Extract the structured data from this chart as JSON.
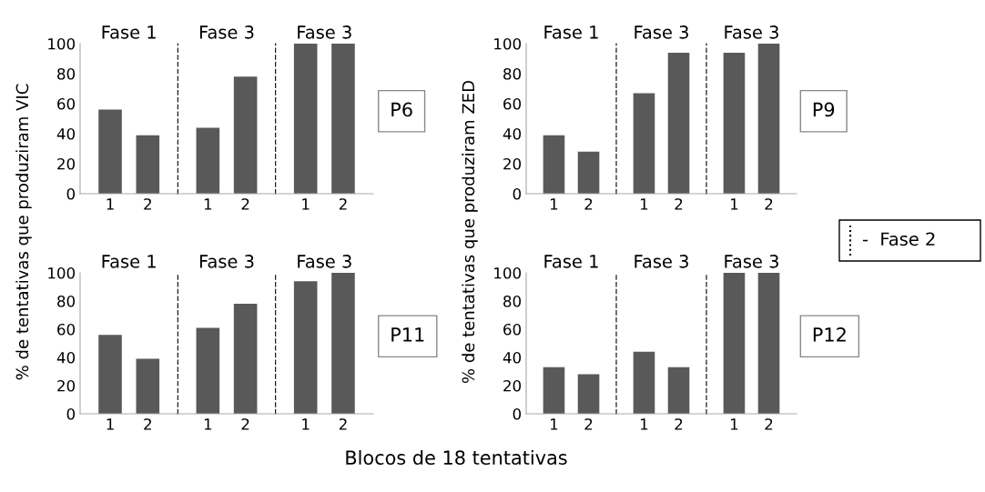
{
  "chart_data": [
    {
      "type": "bar",
      "title": "Fase 1",
      "categories": [
        "1",
        "2"
      ],
      "values": [
        56,
        39
      ],
      "color": "#595959",
      "ylim": [
        0,
        100
      ],
      "yticks": [
        0,
        20,
        40,
        60,
        80,
        100
      ],
      "ylabel": "% de tentativas que produziram VIC"
    },
    {
      "type": "bar",
      "title": "Fase 3",
      "categories": [
        "1",
        "2"
      ],
      "values": [
        44,
        78
      ],
      "color": "#595959",
      "ylim": [
        0,
        100
      ],
      "tick_labels": "x"
    },
    {
      "type": "bar",
      "title": "Fase 3",
      "categories": [
        "1",
        "2"
      ],
      "values": [
        100,
        100
      ],
      "color": "#595959",
      "ylim": [
        0,
        100
      ],
      "tick_labels": "x",
      "annotations": [
        "P6"
      ]
    },
    {
      "type": "bar",
      "title": "Fase 1",
      "categories": [
        "1",
        "2"
      ],
      "values": [
        39,
        28
      ],
      "color": "#595959",
      "ylim": [
        0,
        100
      ],
      "yticks": [
        0,
        20,
        40,
        60,
        80,
        100
      ],
      "ylabel": "% de tentativas que produziram ZED"
    },
    {
      "type": "bar",
      "title": "Fase 3",
      "categories": [
        "1",
        "2"
      ],
      "values": [
        67,
        94
      ],
      "color": "#595959",
      "ylim": [
        0,
        100
      ],
      "tick_labels": "x"
    },
    {
      "type": "bar",
      "title": "Fase 3",
      "categories": [
        "1",
        "2"
      ],
      "values": [
        94,
        100
      ],
      "color": "#595959",
      "ylim": [
        0,
        100
      ],
      "tick_labels": "x",
      "annotations": [
        "P9"
      ]
    },
    {
      "type": "bar",
      "title": "Fase 1",
      "categories": [
        "1",
        "2"
      ],
      "values": [
        56,
        39
      ],
      "color": "#595959",
      "ylim": [
        0,
        100
      ],
      "yticks": [
        0,
        20,
        40,
        60,
        80,
        100
      ]
    },
    {
      "type": "bar",
      "title": "Fase 3",
      "categories": [
        "1",
        "2"
      ],
      "values": [
        61,
        78
      ],
      "color": "#595959",
      "ylim": [
        0,
        100
      ],
      "tick_labels": "x"
    },
    {
      "type": "bar",
      "title": "Fase 3",
      "categories": [
        "1",
        "2"
      ],
      "values": [
        94,
        100
      ],
      "color": "#595959",
      "ylim": [
        0,
        100
      ],
      "tick_labels": "x",
      "annotations": [
        "P11"
      ]
    },
    {
      "type": "bar",
      "title": "Fase 1",
      "categories": [
        "1",
        "2"
      ],
      "values": [
        33,
        28
      ],
      "color": "#595959",
      "ylim": [
        0,
        100
      ],
      "yticks": [
        0,
        20,
        40,
        60,
        80,
        100
      ]
    },
    {
      "type": "bar",
      "title": "Fase 3",
      "categories": [
        "1",
        "2"
      ],
      "values": [
        44,
        33
      ],
      "color": "#595959",
      "ylim": [
        0,
        100
      ],
      "tick_labels": "x"
    },
    {
      "type": "bar",
      "title": "Fase 3",
      "categories": [
        "1",
        "2"
      ],
      "values": [
        100,
        100
      ],
      "color": "#595959",
      "ylim": [
        0,
        100
      ],
      "tick_labels": "x",
      "annotations": [
        "P12"
      ]
    },
    {
      "type": "other",
      "annotations": [
        "-  Fase 2",
        "Blocos de 18 tentativas"
      ]
    }
  ]
}
